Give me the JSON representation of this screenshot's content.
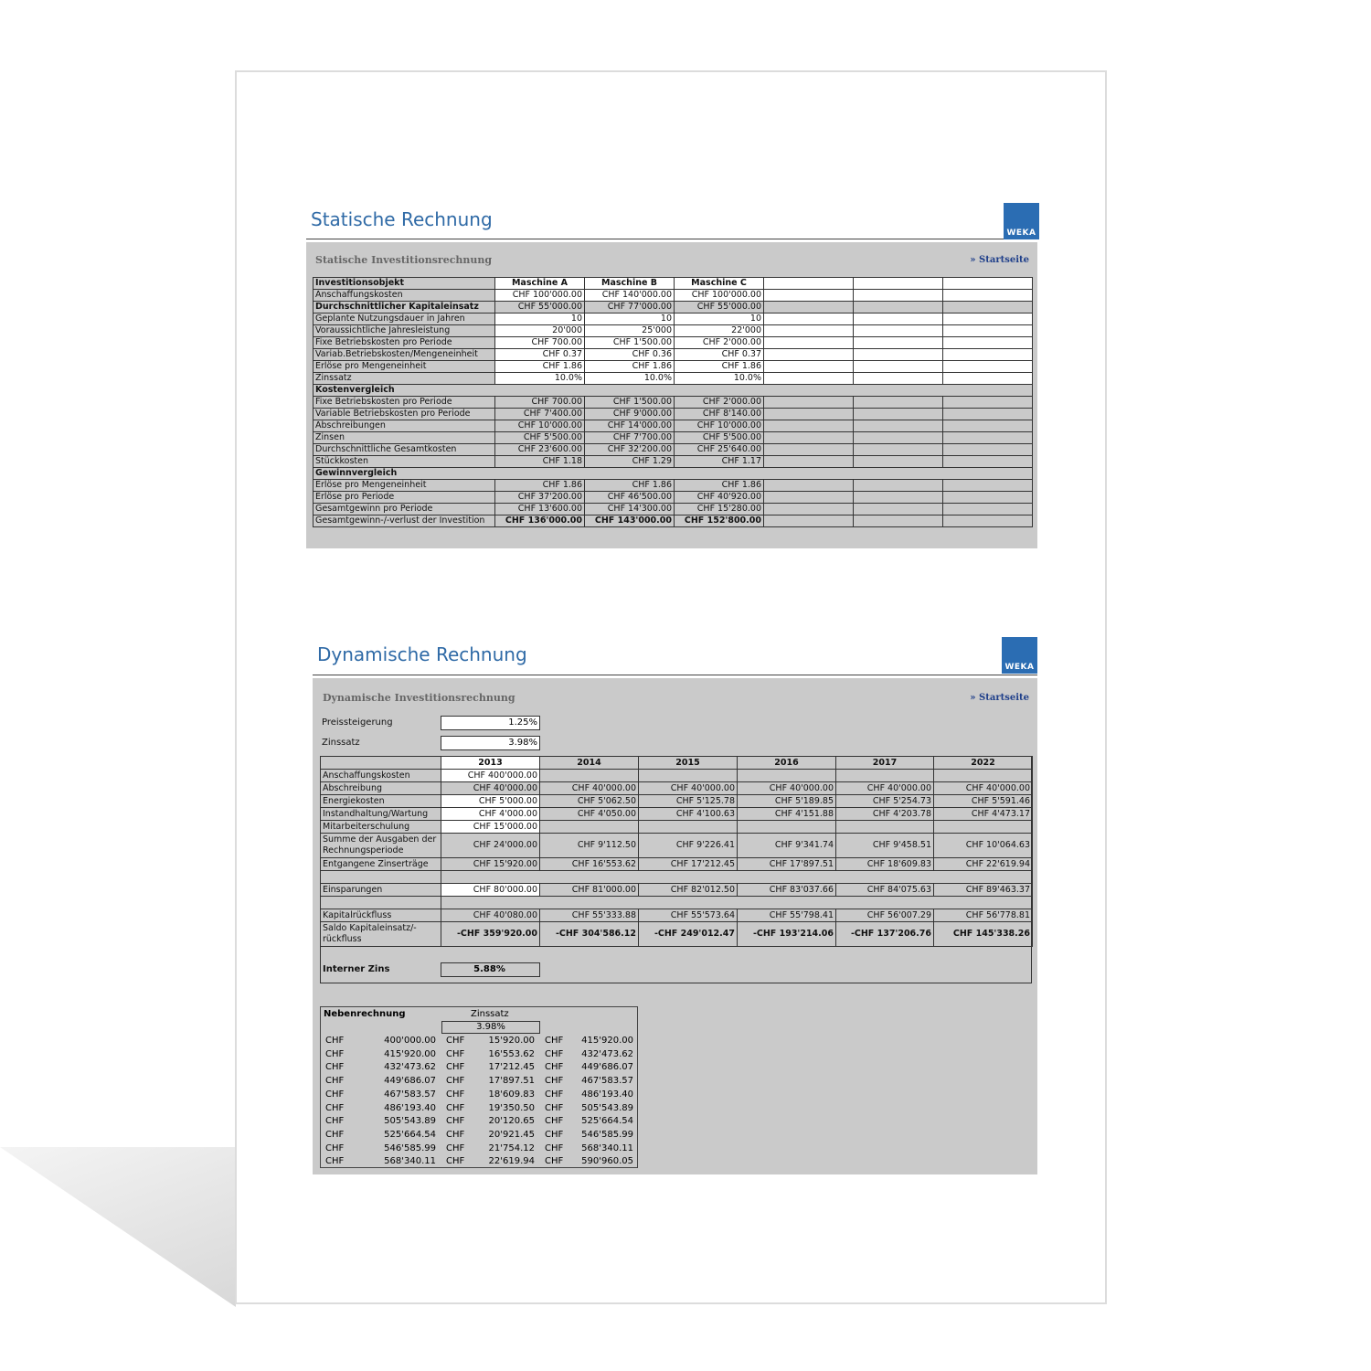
{
  "static": {
    "title": "Statische Rechnung",
    "logo": "WEKA",
    "subtitle": "Statische Investitionsrechnung",
    "link": "» Startseite",
    "header": [
      "Investitionsobjekt",
      "Maschine A",
      "Maschine B",
      "Maschine C",
      "",
      "",
      ""
    ],
    "rows": [
      {
        "label": "Anschaffungskosten",
        "values": [
          "CHF 100'000.00",
          "CHF 140'000.00",
          "CHF 100'000.00"
        ],
        "input": true
      },
      {
        "label": "Durchschnittlicher Kapitaleinsatz",
        "values": [
          "CHF 55'000.00",
          "CHF 77'000.00",
          "CHF 55'000.00"
        ],
        "bold_label": true
      },
      {
        "label": "Geplante Nutzungsdauer in Jahren",
        "values": [
          "10",
          "10",
          "10"
        ],
        "input": true
      },
      {
        "label": "Voraussichtliche Jahresleistung",
        "values": [
          "20'000",
          "25'000",
          "22'000"
        ],
        "input": true
      },
      {
        "label": "Fixe Betriebskosten pro Periode",
        "values": [
          "CHF 700.00",
          "CHF 1'500.00",
          "CHF 2'000.00"
        ],
        "input": true
      },
      {
        "label": "Variab.Betriebskosten/Mengeneinheit",
        "values": [
          "CHF 0.37",
          "CHF 0.36",
          "CHF 0.37"
        ],
        "input": true
      },
      {
        "label": "Erlöse pro Mengeneinheit",
        "values": [
          "CHF 1.86",
          "CHF 1.86",
          "CHF 1.86"
        ],
        "input": true
      },
      {
        "label": "Zinssatz",
        "values": [
          "10.0%",
          "10.0%",
          "10.0%"
        ],
        "input": true
      },
      {
        "section": "Kostenvergleich"
      },
      {
        "label": "Fixe Betriebskosten pro Periode",
        "values": [
          "CHF 700.00",
          "CHF 1'500.00",
          "CHF 2'000.00"
        ]
      },
      {
        "label": "Variable Betriebskosten pro Periode",
        "values": [
          "CHF 7'400.00",
          "CHF 9'000.00",
          "CHF 8'140.00"
        ]
      },
      {
        "label": "Abschreibungen",
        "values": [
          "CHF 10'000.00",
          "CHF 14'000.00",
          "CHF 10'000.00"
        ]
      },
      {
        "label": "Zinsen",
        "values": [
          "CHF 5'500.00",
          "CHF 7'700.00",
          "CHF 5'500.00"
        ]
      },
      {
        "label": "Durchschnittliche Gesamtkosten",
        "values": [
          "CHF 23'600.00",
          "CHF 32'200.00",
          "CHF 25'640.00"
        ]
      },
      {
        "label": "Stückkosten",
        "values": [
          "CHF 1.18",
          "CHF 1.29",
          "CHF 1.17"
        ]
      },
      {
        "section": "Gewinnvergleich"
      },
      {
        "label": "Erlöse pro Mengeneinheit",
        "values": [
          "CHF 1.86",
          "CHF 1.86",
          "CHF 1.86"
        ]
      },
      {
        "label": "Erlöse pro Periode",
        "values": [
          "CHF 37'200.00",
          "CHF 46'500.00",
          "CHF 40'920.00"
        ]
      },
      {
        "label": "Gesamtgewinn pro Periode",
        "values": [
          "CHF 13'600.00",
          "CHF 14'300.00",
          "CHF 15'280.00"
        ]
      },
      {
        "label": "Gesamtgewinn-/-verlust der Investition",
        "values": [
          "CHF 136'000.00",
          "CHF 143'000.00",
          "CHF 152'800.00"
        ],
        "bold_values": true
      }
    ]
  },
  "dynamic": {
    "title": "Dynamische Rechnung",
    "logo": "WEKA",
    "subtitle": "Dynamische Investitionsrechnung",
    "link": "» Startseite",
    "preissteigerung_label": "Preissteigerung",
    "preissteigerung_value": "1.25%",
    "zinssatz_label": "Zinssatz",
    "zinssatz_value": "3.98%",
    "years": [
      "2013",
      "2014",
      "2015",
      "2016",
      "2017",
      "2022"
    ],
    "rows": [
      {
        "label": "Anschaffungskosten",
        "values": [
          "CHF 400'000.00",
          "",
          "",
          "",
          "",
          ""
        ],
        "input": true
      },
      {
        "label": "Abschreibung",
        "values": [
          "CHF 40'000.00",
          "CHF 40'000.00",
          "CHF 40'000.00",
          "CHF 40'000.00",
          "CHF 40'000.00",
          "CHF 40'000.00"
        ]
      },
      {
        "label": "Energiekosten",
        "values": [
          "CHF 5'000.00",
          "CHF 5'062.50",
          "CHF 5'125.78",
          "CHF 5'189.85",
          "CHF 5'254.73",
          "CHF 5'591.46"
        ],
        "input": true
      },
      {
        "label": "Instandhaltung/Wartung",
        "values": [
          "CHF 4'000.00",
          "CHF 4'050.00",
          "CHF 4'100.63",
          "CHF 4'151.88",
          "CHF 4'203.78",
          "CHF 4'473.17"
        ],
        "input": true
      },
      {
        "label": "Mitarbeiterschulung",
        "values": [
          "CHF 15'000.00",
          "",
          "",
          "",
          "",
          ""
        ],
        "input": true
      },
      {
        "label": "Summe  der Ausgaben der Rechnungsperiode",
        "values": [
          "CHF 24'000.00",
          "CHF 9'112.50",
          "CHF 9'226.41",
          "CHF 9'341.74",
          "CHF 9'458.51",
          "CHF 10'064.63"
        ],
        "tall": true
      },
      {
        "label": "Entgangene Zinserträge",
        "values": [
          "CHF 15'920.00",
          "CHF 16'553.62",
          "CHF 17'212.45",
          "CHF 17'897.51",
          "CHF 18'609.83",
          "CHF 22'619.94"
        ]
      },
      {
        "blank": true
      },
      {
        "label": "Einsparungen",
        "values": [
          "CHF 80'000.00",
          "CHF 81'000.00",
          "CHF 82'012.50",
          "CHF 83'037.66",
          "CHF 84'075.63",
          "CHF 89'463.37"
        ],
        "input": true
      },
      {
        "blank": true
      },
      {
        "label": "Kapitalrückfluss",
        "values": [
          "CHF 40'080.00",
          "CHF 55'333.88",
          "CHF 55'573.64",
          "CHF 55'798.41",
          "CHF 56'007.29",
          "CHF 56'778.81"
        ]
      },
      {
        "label": "Saldo Kapitaleinsatz/-rückfluss",
        "values": [
          "-CHF 359'920.00",
          "-CHF 304'586.12",
          "-CHF 249'012.47",
          "-CHF 193'214.06",
          "-CHF 137'206.76",
          "CHF 145'338.26"
        ],
        "tall": true,
        "bold_values": true
      }
    ],
    "internal_rate_label": "Interner Zins",
    "internal_rate_value": "5.88%",
    "side_calc": {
      "title": "Nebenrechnung",
      "rate_label": "Zinssatz",
      "rate_value": "3.98%",
      "currency": "CHF",
      "rows": [
        [
          "400'000.00",
          "15'920.00",
          "415'920.00"
        ],
        [
          "415'920.00",
          "16'553.62",
          "432'473.62"
        ],
        [
          "432'473.62",
          "17'212.45",
          "449'686.07"
        ],
        [
          "449'686.07",
          "17'897.51",
          "467'583.57"
        ],
        [
          "467'583.57",
          "18'609.83",
          "486'193.40"
        ],
        [
          "486'193.40",
          "19'350.50",
          "505'543.89"
        ],
        [
          "505'543.89",
          "20'120.65",
          "525'664.54"
        ],
        [
          "525'664.54",
          "20'921.45",
          "546'585.99"
        ],
        [
          "546'585.99",
          "21'754.12",
          "568'340.11"
        ],
        [
          "568'340.11",
          "22'619.94",
          "590'960.05"
        ]
      ]
    }
  }
}
